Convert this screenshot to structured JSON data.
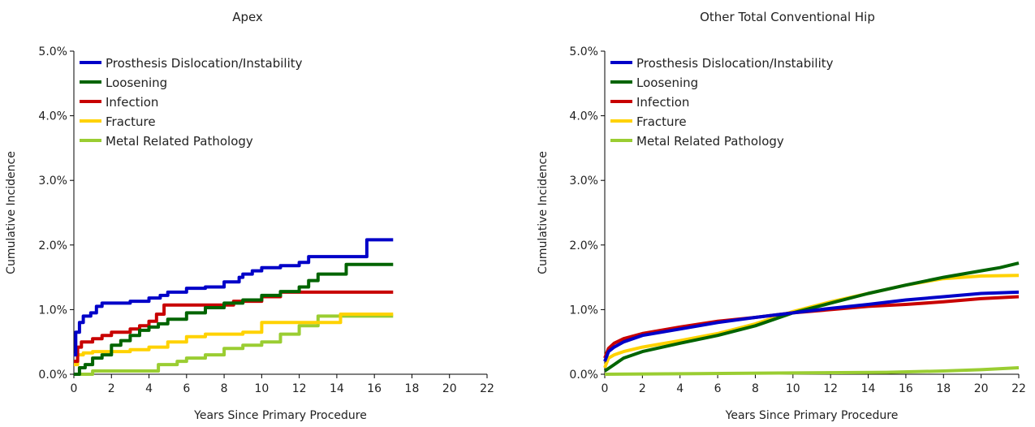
{
  "chart_data": [
    {
      "type": "line",
      "title": "Apex",
      "xlabel": "Years Since Primary Procedure",
      "ylabel": "Cumulative Incidence",
      "xlim": [
        0,
        22
      ],
      "ylim": [
        0,
        5
      ],
      "xticks": [
        "0",
        "2",
        "4",
        "6",
        "8",
        "10",
        "12",
        "14",
        "16",
        "18",
        "20",
        "22"
      ],
      "yticks": [
        "0.0%",
        "1.0%",
        "2.0%",
        "3.0%",
        "4.0%",
        "5.0%"
      ],
      "legend_position": "top-left",
      "grid": false,
      "step": true,
      "series": [
        {
          "name": "Prosthesis Dislocation/Instability",
          "color": "#0000c8",
          "points": [
            [
              0,
              0.3
            ],
            [
              0.1,
              0.65
            ],
            [
              0.3,
              0.8
            ],
            [
              0.5,
              0.9
            ],
            [
              0.9,
              0.95
            ],
            [
              1.2,
              1.05
            ],
            [
              1.5,
              1.1
            ],
            [
              3,
              1.13
            ],
            [
              4,
              1.18
            ],
            [
              4.6,
              1.22
            ],
            [
              5,
              1.27
            ],
            [
              6,
              1.33
            ],
            [
              7,
              1.35
            ],
            [
              8,
              1.43
            ],
            [
              8.8,
              1.5
            ],
            [
              9,
              1.55
            ],
            [
              9.5,
              1.6
            ],
            [
              10,
              1.65
            ],
            [
              11,
              1.68
            ],
            [
              12,
              1.73
            ],
            [
              12.5,
              1.82
            ],
            [
              15.6,
              2.08
            ],
            [
              17,
              2.08
            ]
          ]
        },
        {
          "name": "Loosening",
          "color": "#006400",
          "points": [
            [
              0,
              0
            ],
            [
              0.3,
              0.1
            ],
            [
              0.6,
              0.15
            ],
            [
              1,
              0.25
            ],
            [
              1.5,
              0.3
            ],
            [
              2,
              0.45
            ],
            [
              2.5,
              0.52
            ],
            [
              3,
              0.6
            ],
            [
              3.5,
              0.68
            ],
            [
              4,
              0.73
            ],
            [
              4.5,
              0.78
            ],
            [
              5,
              0.85
            ],
            [
              6,
              0.95
            ],
            [
              7,
              1.03
            ],
            [
              8,
              1.1
            ],
            [
              9,
              1.15
            ],
            [
              10,
              1.22
            ],
            [
              11,
              1.28
            ],
            [
              12,
              1.35
            ],
            [
              12.5,
              1.45
            ],
            [
              13,
              1.55
            ],
            [
              14.5,
              1.7
            ],
            [
              17,
              1.7
            ]
          ]
        },
        {
          "name": "Infection",
          "color": "#c80000",
          "points": [
            [
              0,
              0.2
            ],
            [
              0.2,
              0.42
            ],
            [
              0.4,
              0.5
            ],
            [
              1,
              0.55
            ],
            [
              1.5,
              0.6
            ],
            [
              2,
              0.65
            ],
            [
              3,
              0.7
            ],
            [
              3.5,
              0.75
            ],
            [
              4,
              0.82
            ],
            [
              4.4,
              0.93
            ],
            [
              4.8,
              1.07
            ],
            [
              6,
              1.07
            ],
            [
              8.5,
              1.13
            ],
            [
              10,
              1.2
            ],
            [
              11,
              1.27
            ],
            [
              17,
              1.27
            ]
          ]
        },
        {
          "name": "Fracture",
          "color": "#ffd200",
          "points": [
            [
              0,
              0.15
            ],
            [
              0.2,
              0.3
            ],
            [
              0.5,
              0.33
            ],
            [
              1,
              0.35
            ],
            [
              3,
              0.38
            ],
            [
              4,
              0.42
            ],
            [
              5,
              0.5
            ],
            [
              6,
              0.58
            ],
            [
              7,
              0.62
            ],
            [
              9,
              0.65
            ],
            [
              10,
              0.8
            ],
            [
              14.2,
              0.93
            ],
            [
              17,
              0.93
            ]
          ]
        },
        {
          "name": "Metal Related Pathology",
          "color": "#9acd32",
          "points": [
            [
              0,
              0
            ],
            [
              1,
              0.05
            ],
            [
              4.5,
              0.15
            ],
            [
              5.5,
              0.2
            ],
            [
              6,
              0.25
            ],
            [
              7,
              0.3
            ],
            [
              8,
              0.4
            ],
            [
              9,
              0.45
            ],
            [
              10,
              0.5
            ],
            [
              11,
              0.62
            ],
            [
              12,
              0.75
            ],
            [
              13,
              0.9
            ],
            [
              17,
              0.9
            ]
          ]
        }
      ]
    },
    {
      "type": "line",
      "title": "Other Total Conventional Hip",
      "xlabel": "Years Since Primary Procedure",
      "ylabel": "Cumulative Incidence",
      "xlim": [
        0,
        22
      ],
      "ylim": [
        0,
        5
      ],
      "xticks": [
        "0",
        "2",
        "4",
        "6",
        "8",
        "10",
        "12",
        "14",
        "16",
        "18",
        "20",
        "22"
      ],
      "yticks": [
        "0.0%",
        "1.0%",
        "2.0%",
        "3.0%",
        "4.0%",
        "5.0%"
      ],
      "legend_position": "top-left",
      "grid": false,
      "step": false,
      "series": [
        {
          "name": "Prosthesis Dislocation/Instability",
          "color": "#0000c8",
          "points": [
            [
              0,
              0.2
            ],
            [
              0.2,
              0.35
            ],
            [
              0.5,
              0.42
            ],
            [
              1,
              0.5
            ],
            [
              2,
              0.6
            ],
            [
              4,
              0.7
            ],
            [
              6,
              0.8
            ],
            [
              8,
              0.88
            ],
            [
              10,
              0.95
            ],
            [
              12,
              1.02
            ],
            [
              14,
              1.08
            ],
            [
              16,
              1.15
            ],
            [
              18,
              1.2
            ],
            [
              20,
              1.25
            ],
            [
              22,
              1.27
            ]
          ]
        },
        {
          "name": "Loosening",
          "color": "#006400",
          "points": [
            [
              0,
              0.05
            ],
            [
              0.5,
              0.15
            ],
            [
              1,
              0.25
            ],
            [
              2,
              0.35
            ],
            [
              4,
              0.48
            ],
            [
              6,
              0.6
            ],
            [
              8,
              0.75
            ],
            [
              10,
              0.95
            ],
            [
              12,
              1.1
            ],
            [
              14,
              1.25
            ],
            [
              16,
              1.38
            ],
            [
              18,
              1.5
            ],
            [
              20,
              1.6
            ],
            [
              21,
              1.65
            ],
            [
              22,
              1.72
            ]
          ]
        },
        {
          "name": "Infection",
          "color": "#c80000",
          "points": [
            [
              0,
              0.25
            ],
            [
              0.2,
              0.4
            ],
            [
              0.5,
              0.48
            ],
            [
              1,
              0.55
            ],
            [
              2,
              0.63
            ],
            [
              4,
              0.73
            ],
            [
              6,
              0.82
            ],
            [
              8,
              0.88
            ],
            [
              10,
              0.95
            ],
            [
              12,
              1.0
            ],
            [
              14,
              1.05
            ],
            [
              16,
              1.08
            ],
            [
              18,
              1.12
            ],
            [
              20,
              1.17
            ],
            [
              22,
              1.2
            ]
          ]
        },
        {
          "name": "Fracture",
          "color": "#ffd200",
          "points": [
            [
              0,
              0.1
            ],
            [
              0.2,
              0.25
            ],
            [
              0.5,
              0.3
            ],
            [
              1,
              0.35
            ],
            [
              2,
              0.42
            ],
            [
              4,
              0.52
            ],
            [
              6,
              0.63
            ],
            [
              8,
              0.78
            ],
            [
              10,
              0.97
            ],
            [
              12,
              1.12
            ],
            [
              14,
              1.25
            ],
            [
              16,
              1.38
            ],
            [
              18,
              1.48
            ],
            [
              20,
              1.52
            ],
            [
              22,
              1.53
            ]
          ]
        },
        {
          "name": "Metal Related Pathology",
          "color": "#9acd32",
          "points": [
            [
              0,
              0
            ],
            [
              5,
              0.01
            ],
            [
              10,
              0.02
            ],
            [
              15,
              0.03
            ],
            [
              18,
              0.05
            ],
            [
              20,
              0.07
            ],
            [
              22,
              0.1
            ]
          ]
        }
      ]
    }
  ]
}
